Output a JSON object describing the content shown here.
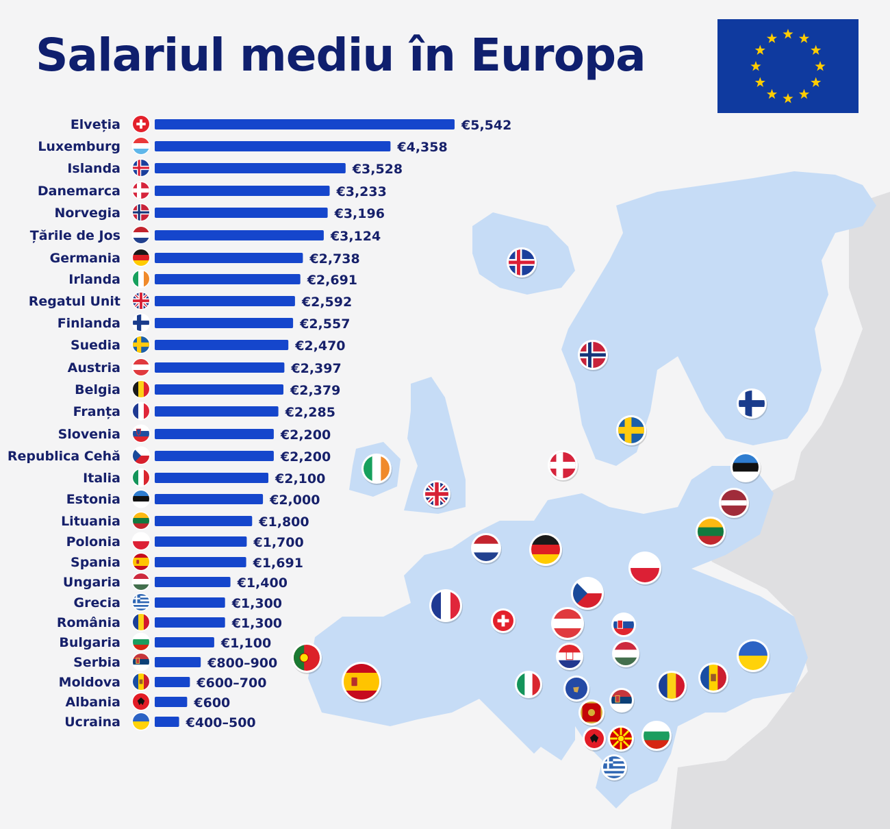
{
  "title": "Salariul mediu în Europa",
  "colors": {
    "bar": "#1546cc",
    "text": "#16206a",
    "title": "#0f1f6e",
    "map": "#c6dcf6",
    "eu_blue": "#0f3a9f",
    "eu_star": "#ffcc00"
  },
  "chart_data": {
    "type": "bar",
    "orientation": "horizontal",
    "series": [
      {
        "categories": [
          "Elveția",
          "Luxemburg",
          "Islanda",
          "Danemarca",
          "Norvegia",
          "Țările de Jos",
          "Germania",
          "Irlanda",
          "Regatul Unit",
          "Finlanda",
          "Suedia",
          "Austria",
          "Belgia",
          "Franța",
          "Slovenia",
          "Republica Cehă",
          "Italia",
          "Estonia",
          "Lituania",
          "Polonia",
          "Spania",
          "Ungaria",
          "Grecia",
          "România",
          "Bulgaria",
          "Serbia",
          "Moldova",
          "Albania",
          "Ucraina"
        ],
        "values": [
          5542,
          4358,
          3528,
          3233,
          3196,
          3124,
          2738,
          2691,
          2592,
          2557,
          2470,
          2397,
          2379,
          2285,
          2200,
          2200,
          2100,
          2000,
          1800,
          1700,
          1691,
          1400,
          1300,
          1300,
          1100,
          850,
          650,
          600,
          450
        ],
        "value_labels": [
          "€5,542",
          "€4,358",
          "€3,528",
          "€3,233",
          "€3,196",
          "€3,124",
          "€2,738",
          "€2,691",
          "€2,592",
          "€2,557",
          "€2,470",
          "€2,397",
          "€2,379",
          "€2,285",
          "€2,200",
          "€2,200",
          "€2,100",
          "€2,000",
          "€1,800",
          "€1,700",
          "€1,691",
          "€1,400",
          "€1,300",
          "€1,300",
          "€1,100",
          "€800–900",
          "€600–700",
          "€600",
          "€400–500"
        ]
      }
    ],
    "xlabel": "",
    "ylabel": "",
    "grid": false
  },
  "flags": [
    "switzerland-flag",
    "luxembourg-flag",
    "iceland-flag",
    "denmark-flag",
    "norway-flag",
    "netherlands-flag",
    "germany-flag",
    "ireland-flag",
    "uk-flag",
    "finland-flag",
    "sweden-flag",
    "austria-flag",
    "belgium-flag",
    "france-flag",
    "slovenia-flag",
    "czech-flag",
    "italy-flag",
    "estonia-flag",
    "lithuania-flag",
    "poland-flag",
    "spain-flag",
    "hungary-flag",
    "greece-flag",
    "romania-flag",
    "bulgaria-flag",
    "serbia-flag",
    "moldova-flag",
    "albania-flag",
    "ukraine-flag"
  ]
}
